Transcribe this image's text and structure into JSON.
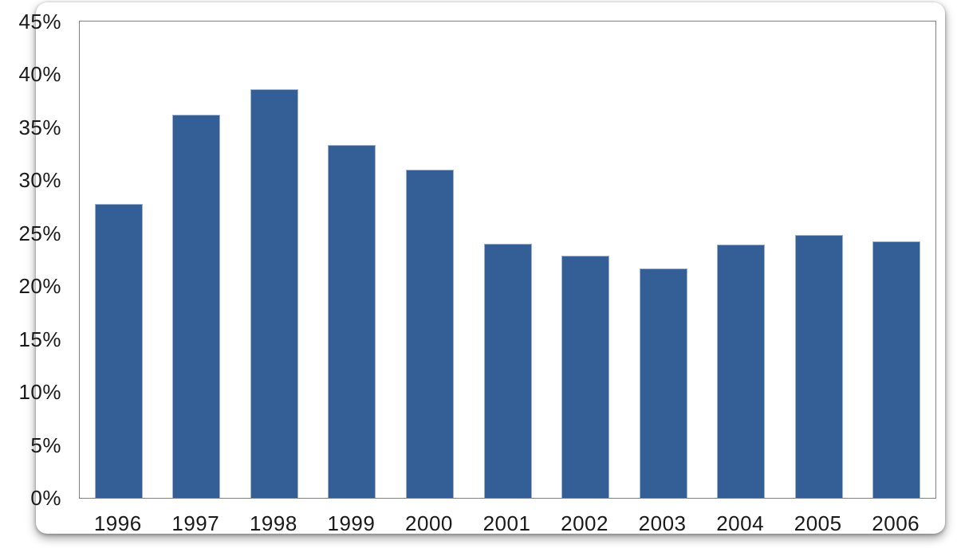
{
  "chart_data": {
    "type": "bar",
    "title": "",
    "xlabel": "",
    "ylabel": "",
    "categories": [
      "1996",
      "1997",
      "1998",
      "1999",
      "2000",
      "2001",
      "2002",
      "2003",
      "2004",
      "2005",
      "2006"
    ],
    "values": [
      27.8,
      36.2,
      38.6,
      33.3,
      31.0,
      24.0,
      22.9,
      21.7,
      23.9,
      24.8,
      24.2
    ],
    "ylim": [
      0,
      45
    ],
    "ytick_step": 5,
    "ytick_labels": [
      "0%",
      "5%",
      "10%",
      "15%",
      "20%",
      "25%",
      "30%",
      "35%",
      "40%",
      "45%"
    ],
    "grid": false,
    "legend": "none",
    "colors": {
      "bar_fill": "#335F96",
      "bar_border": "#9FB1CF",
      "plot_border": "#808080",
      "text": "#1A1A1A",
      "background": "#FFFFFF"
    }
  }
}
